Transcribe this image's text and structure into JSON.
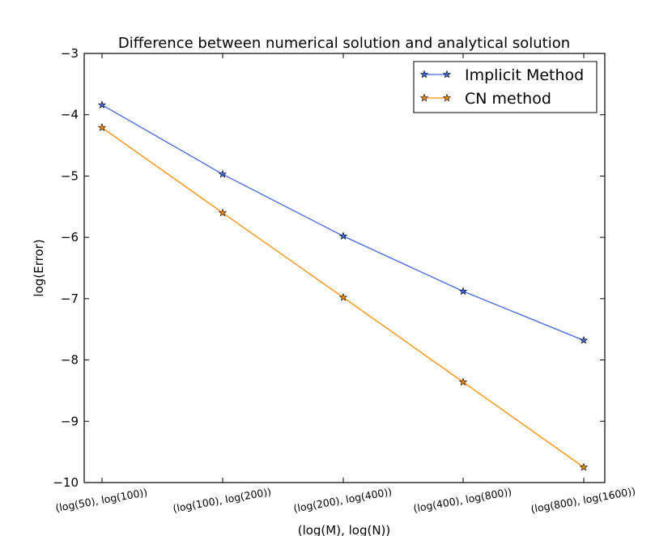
{
  "chart_data": {
    "type": "line",
    "title": "Difference between numerical solution and analytical solution",
    "xlabel": "(log(M), log(N))",
    "ylabel": "log(Error)",
    "categories": [
      "(log(50), log(100))",
      "(log(100), log(200))",
      "(log(200), log(400))",
      "(log(400), log(800))",
      "(log(800), log(1600))"
    ],
    "ylim": [
      -10,
      -3
    ],
    "yticks": [
      -3,
      -4,
      -5,
      -6,
      -7,
      -8,
      -9,
      -10
    ],
    "ytick_labels": [
      "−3",
      "−4",
      "−5",
      "−6",
      "−7",
      "−8",
      "−9",
      "−10"
    ],
    "legend_position": "top-right",
    "grid": false,
    "series": [
      {
        "name": "Implicit Method",
        "color": "#4169e1",
        "marker": "star",
        "values": [
          -3.84,
          -4.97,
          -5.98,
          -6.88,
          -7.68
        ]
      },
      {
        "name": "CN method",
        "color": "#ff8c00",
        "marker": "star",
        "values": [
          -4.21,
          -5.6,
          -6.98,
          -8.36,
          -9.75
        ]
      }
    ]
  }
}
